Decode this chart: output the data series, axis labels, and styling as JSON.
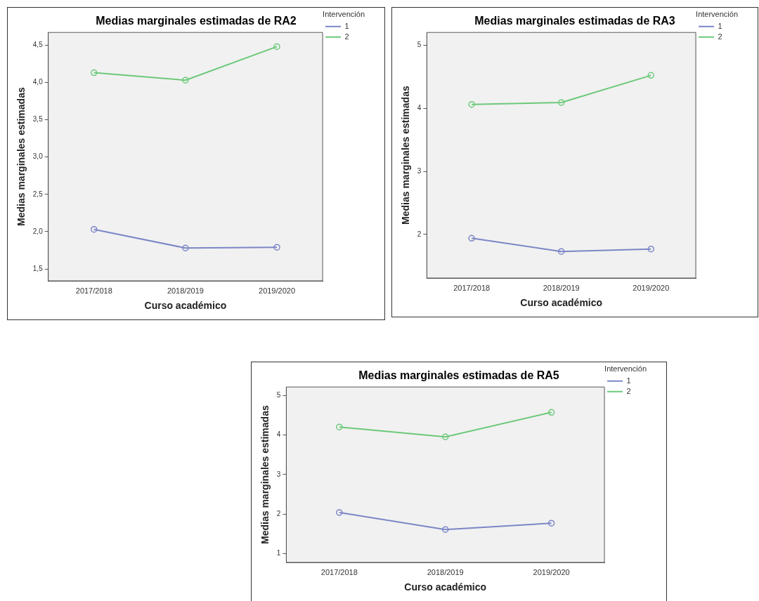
{
  "chart_data": [
    {
      "type": "line",
      "title": "Medias marginales estimadas de RA2",
      "xlabel": "Curso académico",
      "ylabel": "Medias marginales estimadas",
      "legend_title": "Intervención",
      "legend": "top right",
      "marker": "circle",
      "grid": false,
      "categories": [
        "2017/2018",
        "2018/2019",
        "2019/2020"
      ],
      "ylim": [
        1.34,
        4.67
      ],
      "yticks": [
        {
          "value": 1.5,
          "label": "1,5"
        },
        {
          "value": 2,
          "label": "2,0"
        },
        {
          "value": 2.5,
          "label": "2,5"
        },
        {
          "value": 3,
          "label": "3,0"
        },
        {
          "value": 3.5,
          "label": "3,5"
        },
        {
          "value": 4,
          "label": "4,0"
        },
        {
          "value": 4.5,
          "label": "4,5"
        }
      ],
      "series": [
        {
          "name": "1",
          "color": "#7b86c6",
          "values": [
            2.03,
            1.78,
            1.79
          ]
        },
        {
          "name": "2",
          "color": "#6cc97a",
          "values": [
            4.13,
            4.03,
            4.48
          ]
        }
      ]
    },
    {
      "type": "line",
      "title": "Medias marginales estimadas de RA3",
      "xlabel": "Curso académico",
      "ylabel": "Medias marginales estimadas",
      "legend_title": "Intervención",
      "legend": "top right",
      "marker": "circle",
      "grid": false,
      "categories": [
        "2017/2018",
        "2018/2019",
        "2019/2020"
      ],
      "ylim": [
        1.31,
        5.2
      ],
      "yticks": [
        2,
        3,
        4,
        5
      ],
      "series": [
        {
          "name": "1",
          "color": "#7b86c6",
          "values": [
            1.94,
            1.73,
            1.77
          ]
        },
        {
          "name": "2",
          "color": "#6cc97a",
          "values": [
            4.06,
            4.09,
            4.52
          ]
        }
      ]
    },
    {
      "type": "line",
      "title": "Medias marginales estimadas de RA5",
      "xlabel": "Curso académico",
      "ylabel": "Medias marginales estimadas",
      "legend_title": "Intervención",
      "legend": "top right",
      "marker": "circle",
      "grid": false,
      "categories": [
        "2017/2018",
        "2018/2019",
        "2019/2020"
      ],
      "ylim": [
        0.78,
        5.21
      ],
      "yticks": [
        1,
        2,
        3,
        4,
        5
      ],
      "series": [
        {
          "name": "1",
          "color": "#7b86c6",
          "values": [
            2.04,
            1.61,
            1.77
          ]
        },
        {
          "name": "2",
          "color": "#6cc97a",
          "values": [
            4.2,
            3.95,
            4.57
          ]
        }
      ]
    }
  ]
}
